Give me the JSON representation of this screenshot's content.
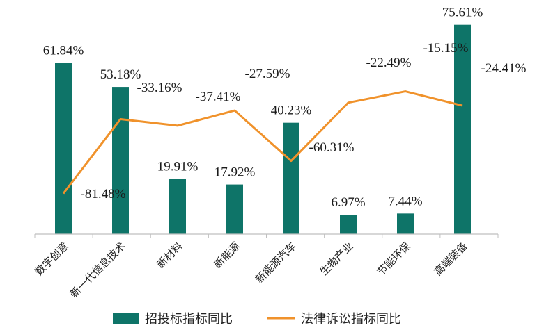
{
  "chart_data": {
    "type": "bar",
    "categories": [
      "数字创意",
      "新一代信息技术",
      "新材料",
      "新能源",
      "新能源汽车",
      "生物产业",
      "节能环保",
      "高端装备"
    ],
    "series": [
      {
        "name": "招投标指标同比",
        "type": "bar",
        "color": "#0e7468",
        "values": [
          61.84,
          53.18,
          19.91,
          17.92,
          40.23,
          6.97,
          7.44,
          75.61
        ],
        "labels": [
          "61.84%",
          "53.18%",
          "19.91%",
          "17.92%",
          "40.23%",
          "6.97%",
          "7.44%",
          "75.61%"
        ]
      },
      {
        "name": "法律诉讼指标同比",
        "type": "line",
        "color": "#f0922b",
        "values": [
          -81.48,
          -33.16,
          -37.41,
          -27.59,
          -60.31,
          -22.49,
          -15.15,
          -24.41
        ],
        "labels": [
          "-81.48%",
          "-33.16%",
          "-37.41%",
          "-27.59%",
          "-60.31%",
          "-22.49%",
          "-15.15%",
          "-24.41%"
        ]
      }
    ],
    "legend_position": "bottom",
    "grid": false
  }
}
